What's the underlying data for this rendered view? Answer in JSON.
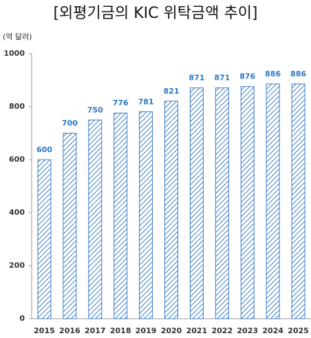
{
  "chart_data": {
    "type": "bar",
    "title": "[외평기금의 KIC 위탁금액 추이]",
    "unit_label": "(억 달러)",
    "categories": [
      "2015",
      "2016",
      "2017",
      "2018",
      "2019",
      "2020",
      "2021",
      "2022",
      "2023",
      "2024",
      "2025"
    ],
    "values": [
      600,
      700,
      750,
      776,
      781,
      821,
      871,
      871,
      876,
      886,
      886
    ],
    "color": "#3a7cc3",
    "label_color": "#2a78c6",
    "ylim": [
      0,
      1000
    ],
    "yticks": [
      0,
      200,
      400,
      600,
      800,
      1000
    ],
    "grid": false
  }
}
